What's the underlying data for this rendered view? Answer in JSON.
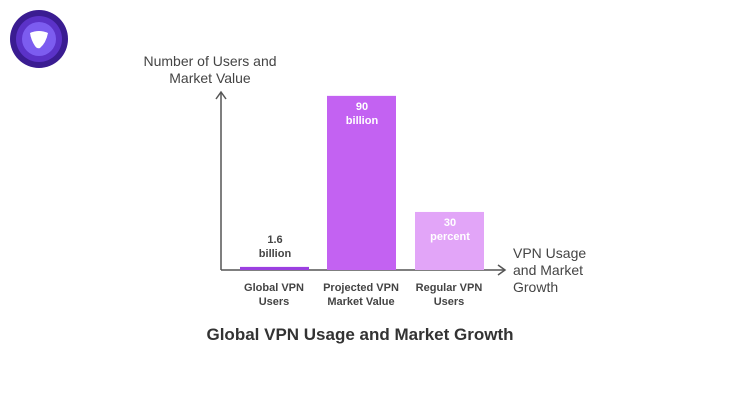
{
  "logo": {
    "name": "purple-circle-logo",
    "colors": [
      "#3a1c91",
      "#5b32c8",
      "#7c5cf0"
    ]
  },
  "chart_data": {
    "type": "bar",
    "title": "Global VPN Usage and Market Growth",
    "ylabel": "Number of Users and Market Value",
    "xlabel": "VPN Usage and Market Growth",
    "categories": [
      "Global VPN Users",
      "Projected VPN Market Value",
      "Regular VPN Users"
    ],
    "values": [
      1.6,
      90,
      30
    ],
    "data_labels": [
      "1.6 billion",
      "90 billion",
      "30 percent"
    ],
    "colors": [
      "#9b3fe0",
      "#c362f2",
      "#e2a5f8"
    ],
    "label_colors": [
      "#444444",
      "#ffffff",
      "#ffffff"
    ],
    "ylim": [
      0,
      92
    ],
    "grid": false
  }
}
